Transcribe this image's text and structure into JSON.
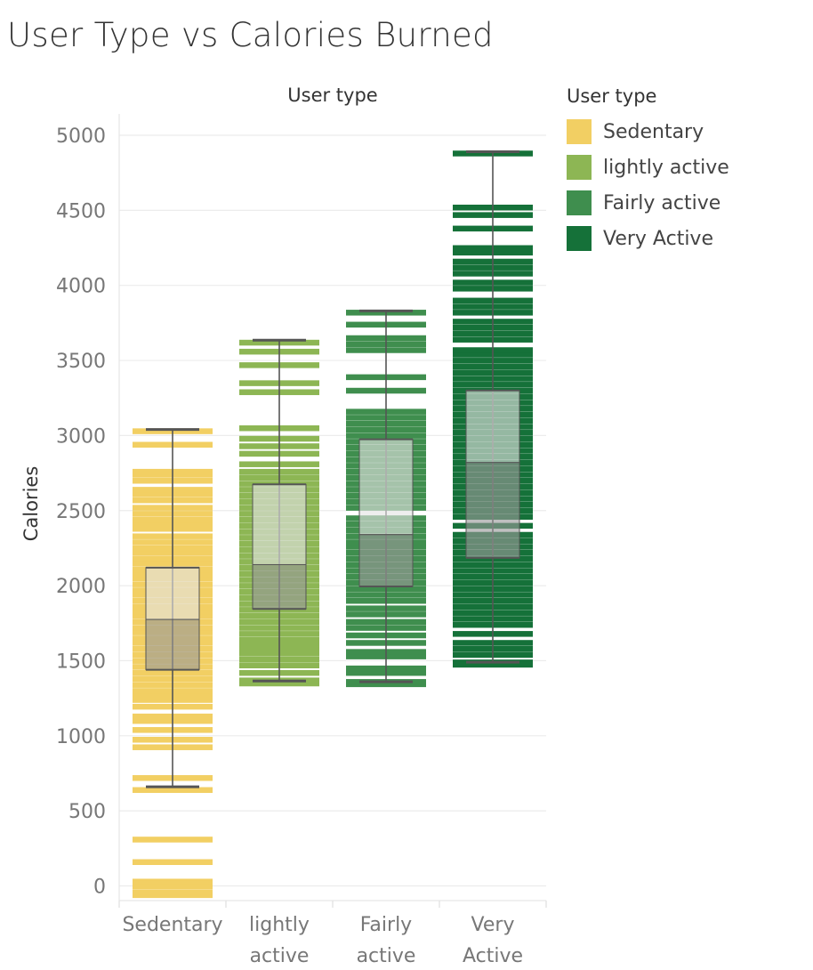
{
  "title": "User Type vs Calories Burned",
  "chart_data": {
    "type": "box",
    "title": "User Type vs Calories Burned",
    "column_header": "User type",
    "ylabel": "Calories",
    "ylim": [
      -80,
      5100
    ],
    "yticks": [
      0,
      500,
      1000,
      1500,
      2000,
      2500,
      3000,
      3500,
      4000,
      4500,
      5000
    ],
    "grid": true,
    "legend": {
      "title": "User type",
      "position": "top-right",
      "items": [
        {
          "label": "Sedentary",
          "color": "#F2CF63"
        },
        {
          "label": "lightly active",
          "color": "#8DB654"
        },
        {
          "label": "Fairly active",
          "color": "#3F8E4E"
        },
        {
          "label": "Very Active",
          "color": "#157139"
        }
      ]
    },
    "categories": [
      "Sedentary",
      "lightly active",
      "Fairly active",
      "Very Active"
    ],
    "category_lines": [
      [
        "Sedentary"
      ],
      [
        "lightly",
        "active"
      ],
      [
        "Fairly",
        "active"
      ],
      [
        "Very",
        "Active"
      ]
    ],
    "series": [
      {
        "name": "Sedentary",
        "color": "#F2CF63",
        "box": {
          "min": 660,
          "q1": 1440,
          "median": 1775,
          "q3": 2120,
          "max": 3040
        },
        "points": [
          -60,
          -40,
          0,
          30,
          160,
          310,
          640,
          720,
          925,
          975,
          1040,
          1100,
          1130,
          1195,
          1240,
          1270,
          1300,
          1340,
          1380,
          1420,
          1460,
          1500,
          1540,
          1580,
          1620,
          1650,
          1690,
          1720,
          1760,
          1800,
          1830,
          1860,
          1900,
          1940,
          1970,
          2010,
          2050,
          2080,
          2110,
          2150,
          2180,
          2220,
          2250,
          2290,
          2330,
          2380,
          2410,
          2440,
          2480,
          2520,
          2570,
          2610,
          2640,
          2700,
          2740,
          2760,
          2940,
          3030
        ]
      },
      {
        "name": "lightly active",
        "color": "#8DB654",
        "box": {
          "min": 1365,
          "q1": 1845,
          "median": 2140,
          "q3": 2675,
          "max": 3635
        },
        "points": [
          1350,
          1370,
          1420,
          1470,
          1510,
          1550,
          1580,
          1610,
          1640,
          1680,
          1720,
          1760,
          1800,
          1840,
          1880,
          1920,
          1960,
          2000,
          2040,
          2080,
          2120,
          2160,
          2200,
          2240,
          2280,
          2320,
          2360,
          2400,
          2440,
          2480,
          2520,
          2560,
          2600,
          2640,
          2680,
          2720,
          2760,
          2810,
          2880,
          2930,
          2980,
          3050,
          3290,
          3350,
          3470,
          3560,
          3620
        ]
      },
      {
        "name": "Fairly active",
        "color": "#3F8E4E",
        "box": {
          "min": 1360,
          "q1": 1995,
          "median": 2340,
          "q3": 2975,
          "max": 3830
        },
        "points": [
          1345,
          1360,
          1420,
          1450,
          1530,
          1560,
          1620,
          1670,
          1720,
          1760,
          1810,
          1850,
          1900,
          1940,
          1980,
          2020,
          2060,
          2100,
          2140,
          2180,
          2220,
          2260,
          2290,
          2330,
          2370,
          2410,
          2450,
          2520,
          2560,
          2600,
          2640,
          2680,
          2720,
          2760,
          2800,
          2840,
          2880,
          2920,
          2960,
          3000,
          3040,
          3080,
          3120,
          3160,
          3300,
          3390,
          3570,
          3610,
          3650,
          3740,
          3820
        ]
      },
      {
        "name": "Very Active",
        "color": "#157139",
        "box": {
          "min": 1490,
          "q1": 2185,
          "median": 2820,
          "q3": 3300,
          "max": 4890
        },
        "points": [
          1475,
          1490,
          1540,
          1580,
          1620,
          1680,
          1740,
          1780,
          1820,
          1860,
          1900,
          1940,
          1980,
          2020,
          2060,
          2100,
          2140,
          2180,
          2220,
          2260,
          2300,
          2340,
          2400,
          2460,
          2500,
          2540,
          2580,
          2620,
          2660,
          2700,
          2740,
          2780,
          2820,
          2860,
          2900,
          2940,
          2980,
          3020,
          3060,
          3100,
          3140,
          3180,
          3220,
          3260,
          3300,
          3340,
          3380,
          3420,
          3460,
          3500,
          3540,
          3570,
          3640,
          3680,
          3720,
          3760,
          3820,
          3860,
          3900,
          3980,
          4020,
          4080,
          4120,
          4160,
          4220,
          4250,
          4380,
          4470,
          4520,
          4880
        ]
      }
    ]
  }
}
